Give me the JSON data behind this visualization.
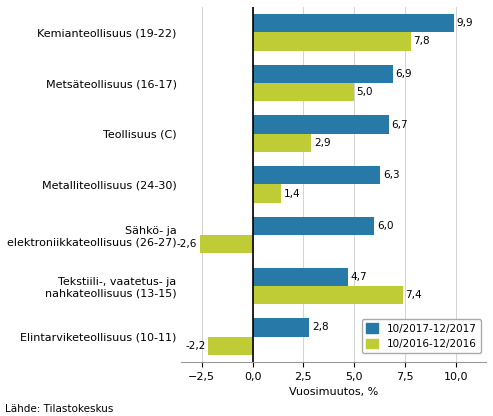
{
  "categories": [
    "Kemianteollisuus (19-22)",
    "Metsäteollisuus (16-17)",
    "Teollisuus (C)",
    "Metalliteollisuus (24-30)",
    "Sähkö- ja\nelektroniikkateollisuus (26-27)",
    "Tekstiili-, vaatetus- ja\nnahkateollisuus (13-15)",
    "Elintarviketeollisuus (10-11)"
  ],
  "series1_label": "10/2017-12/2017",
  "series2_label": "10/2016-12/2016",
  "series1_values": [
    9.9,
    6.9,
    6.7,
    6.3,
    6.0,
    4.7,
    2.8
  ],
  "series2_values": [
    7.8,
    5.0,
    2.9,
    1.4,
    -2.6,
    7.4,
    -2.2
  ],
  "color1": "#2779A7",
  "color2": "#BFCC35",
  "xlabel": "Vuosimuutos, %",
  "xlim": [
    -3.5,
    11.5
  ],
  "xticks": [
    -2.5,
    0.0,
    2.5,
    5.0,
    7.5,
    10.0
  ],
  "source": "Lähde: Tilastokeskus",
  "bar_height": 0.36,
  "annotation_fontsize": 7.5,
  "label_fontsize": 8.0,
  "tick_fontsize": 8.0,
  "source_fontsize": 7.5
}
